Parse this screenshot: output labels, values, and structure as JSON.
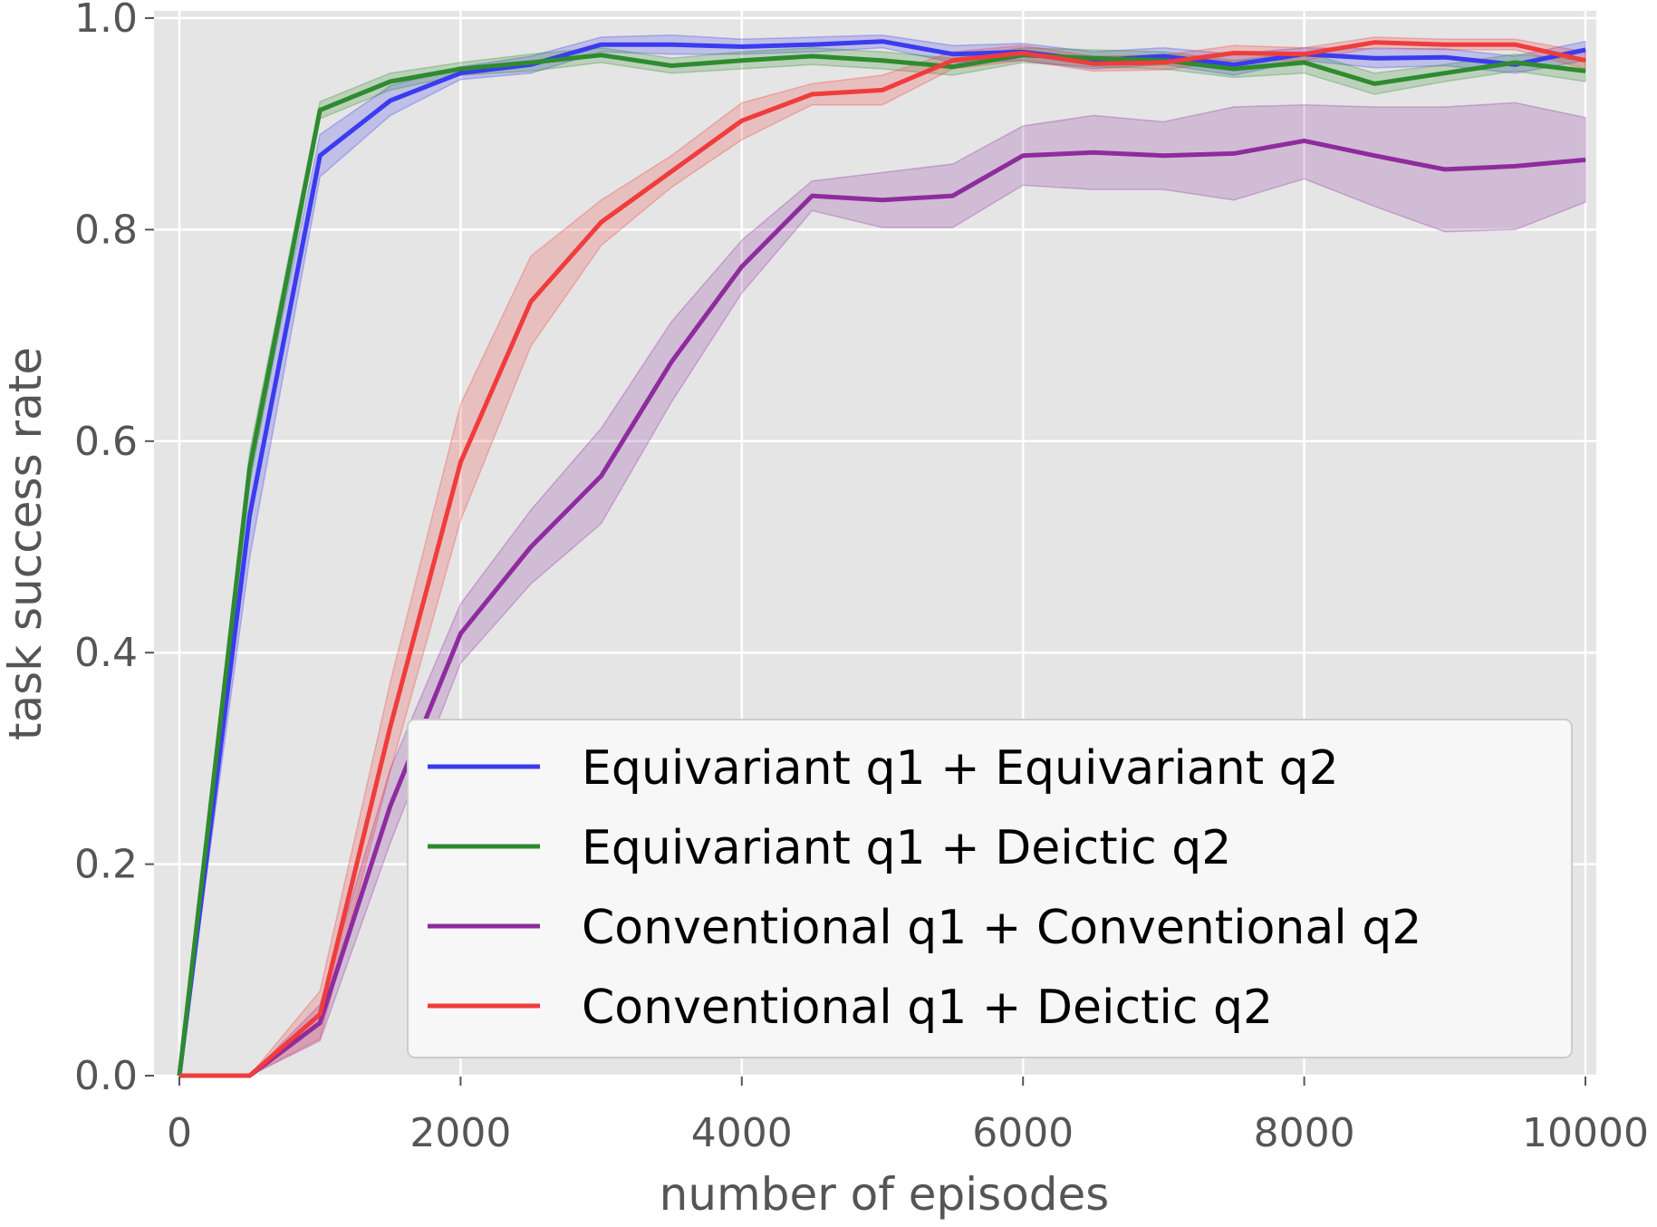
{
  "chart_data": {
    "type": "line",
    "xlabel": "number of episodes",
    "ylabel": "task success rate",
    "xlim": [
      0,
      10000
    ],
    "ylim": [
      0.0,
      1.0
    ],
    "xticks": [
      0,
      2000,
      4000,
      6000,
      8000,
      10000
    ],
    "xtick_labels": [
      "0",
      "2000",
      "4000",
      "6000",
      "8000",
      "10000"
    ],
    "yticks": [
      0.0,
      0.2,
      0.4,
      0.6,
      0.8,
      1.0
    ],
    "ytick_labels": [
      "0.0",
      "0.2",
      "0.4",
      "0.6",
      "0.8",
      "1.0"
    ],
    "grid": true,
    "legend_position": "lower-right",
    "x": [
      0,
      500,
      1000,
      1500,
      2000,
      2500,
      3000,
      3500,
      4000,
      4500,
      5000,
      5500,
      6000,
      6500,
      7000,
      7500,
      8000,
      8500,
      9000,
      9500,
      10000
    ],
    "series": [
      {
        "name": "Equivariant q1 + Equivariant q2",
        "color": "#3b3bf0",
        "values": [
          0.0,
          0.53,
          0.87,
          0.922,
          0.948,
          0.956,
          0.975,
          0.975,
          0.973,
          0.975,
          0.978,
          0.966,
          0.968,
          0.96,
          0.964,
          0.956,
          0.966,
          0.962,
          0.963,
          0.956,
          0.97
        ],
        "lower": [
          0.0,
          0.49,
          0.85,
          0.908,
          0.942,
          0.948,
          0.968,
          0.966,
          0.966,
          0.968,
          0.972,
          0.958,
          0.96,
          0.952,
          0.956,
          0.946,
          0.96,
          0.953,
          0.955,
          0.948,
          0.96
        ],
        "upper": [
          0.0,
          0.57,
          0.89,
          0.936,
          0.954,
          0.964,
          0.982,
          0.984,
          0.98,
          0.982,
          0.984,
          0.974,
          0.976,
          0.968,
          0.972,
          0.966,
          0.972,
          0.971,
          0.971,
          0.964,
          0.978
        ]
      },
      {
        "name": "Equivariant q1 + Deictic q2",
        "color": "#2e8b2e",
        "values": [
          0.0,
          0.575,
          0.913,
          0.94,
          0.952,
          0.958,
          0.965,
          0.955,
          0.96,
          0.964,
          0.96,
          0.954,
          0.965,
          0.962,
          0.96,
          0.952,
          0.958,
          0.938,
          0.948,
          0.958,
          0.95
        ],
        "lower": [
          0.0,
          0.56,
          0.905,
          0.932,
          0.946,
          0.95,
          0.958,
          0.948,
          0.952,
          0.956,
          0.952,
          0.946,
          0.958,
          0.954,
          0.952,
          0.944,
          0.948,
          0.928,
          0.94,
          0.95,
          0.94
        ],
        "upper": [
          0.0,
          0.59,
          0.921,
          0.948,
          0.958,
          0.966,
          0.972,
          0.962,
          0.968,
          0.972,
          0.968,
          0.962,
          0.972,
          0.97,
          0.968,
          0.96,
          0.968,
          0.948,
          0.956,
          0.966,
          0.96
        ]
      },
      {
        "name": "Conventional q1 + Conventional q2",
        "color": "#8e2c9e",
        "values": [
          0.0,
          0.0,
          0.05,
          0.255,
          0.418,
          0.5,
          0.567,
          0.675,
          0.765,
          0.832,
          0.828,
          0.832,
          0.87,
          0.873,
          0.87,
          0.872,
          0.884,
          0.87,
          0.857,
          0.86,
          0.866
        ],
        "lower": [
          0.0,
          0.0,
          0.033,
          0.22,
          0.39,
          0.465,
          0.522,
          0.637,
          0.74,
          0.818,
          0.802,
          0.802,
          0.842,
          0.838,
          0.838,
          0.828,
          0.848,
          0.822,
          0.798,
          0.8,
          0.826
        ],
        "upper": [
          0.0,
          0.0,
          0.067,
          0.29,
          0.446,
          0.535,
          0.612,
          0.713,
          0.79,
          0.846,
          0.854,
          0.862,
          0.898,
          0.908,
          0.902,
          0.916,
          0.918,
          0.916,
          0.916,
          0.92,
          0.906
        ]
      },
      {
        "name": "Conventional q1 + Deictic q2",
        "color": "#f03c3c",
        "values": [
          0.0,
          0.0,
          0.058,
          0.33,
          0.58,
          0.732,
          0.807,
          0.855,
          0.903,
          0.928,
          0.932,
          0.96,
          0.967,
          0.957,
          0.958,
          0.967,
          0.966,
          0.977,
          0.975,
          0.975,
          0.96
        ],
        "lower": [
          0.0,
          0.0,
          0.035,
          0.288,
          0.525,
          0.69,
          0.785,
          0.84,
          0.885,
          0.918,
          0.918,
          0.952,
          0.96,
          0.95,
          0.951,
          0.96,
          0.96,
          0.972,
          0.97,
          0.97,
          0.952
        ],
        "upper": [
          0.0,
          0.0,
          0.08,
          0.372,
          0.635,
          0.775,
          0.828,
          0.87,
          0.92,
          0.938,
          0.946,
          0.968,
          0.974,
          0.964,
          0.965,
          0.974,
          0.972,
          0.982,
          0.98,
          0.98,
          0.968
        ]
      }
    ]
  }
}
